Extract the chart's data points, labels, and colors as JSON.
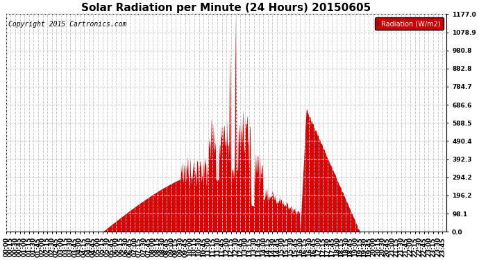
{
  "title": "Solar Radiation per Minute (24 Hours) 20150605",
  "copyright": "Copyright 2015 Cartronics.com",
  "legend_text": "Radiation (W/m2)",
  "ylim": [
    0.0,
    1177.0
  ],
  "yticks": [
    0.0,
    98.1,
    196.2,
    294.2,
    392.3,
    490.4,
    588.5,
    686.6,
    784.7,
    882.8,
    980.8,
    1078.9,
    1177.0
  ],
  "fill_color": "#dd0000",
  "grid_color": "#cccccc",
  "legend_bg": "#cc0000",
  "bg_color": "#ffffff",
  "title_fontsize": 11,
  "axis_fontsize": 6.5,
  "copyright_fontsize": 7
}
